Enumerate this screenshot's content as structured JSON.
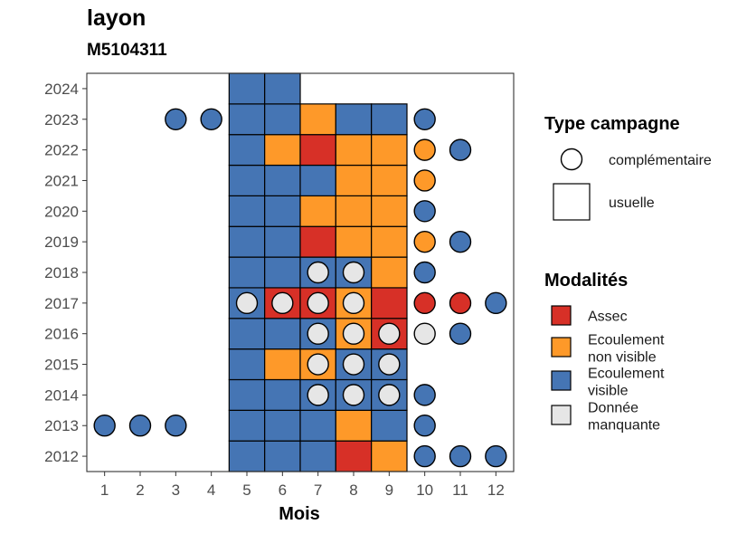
{
  "chart_data": {
    "type": "heatmap",
    "title": "layon",
    "subtitle": "M5104311",
    "xlabel": "Mois",
    "ylabel": "",
    "x_ticks": [
      "1",
      "2",
      "3",
      "4",
      "5",
      "6",
      "7",
      "8",
      "9",
      "10",
      "11",
      "12"
    ],
    "y_ticks": [
      "2012",
      "2013",
      "2014",
      "2015",
      "2016",
      "2017",
      "2018",
      "2019",
      "2020",
      "2021",
      "2022",
      "2023",
      "2024"
    ],
    "xlim": [
      0.5,
      12.5
    ],
    "ylim": [
      2011.5,
      2024.5
    ],
    "grid": false,
    "legend_shape": {
      "title": "Type campagne",
      "items": [
        {
          "key": "complementaire",
          "label": "complémentaire",
          "shape": "circle"
        },
        {
          "key": "usuelle",
          "label": "usuelle",
          "shape": "square"
        }
      ]
    },
    "legend_color": {
      "title": "Modalités",
      "items": [
        {
          "key": "A",
          "label_lines": [
            "Assec"
          ],
          "color": "#d73027"
        },
        {
          "key": "N",
          "label_lines": [
            "Ecoulement",
            "non visible"
          ],
          "color": "#fe9929"
        },
        {
          "key": "V",
          "label_lines": [
            "Ecoulement",
            "visible"
          ],
          "color": "#4575b4"
        },
        {
          "key": "M",
          "label_lines": [
            "Donnée",
            "manquante"
          ],
          "color": "#e6e6e6"
        }
      ]
    },
    "usuelle": [
      {
        "year": 2012,
        "months": [
          5,
          6,
          7,
          8,
          9
        ],
        "values": [
          "V",
          "V",
          "V",
          "A",
          "N"
        ]
      },
      {
        "year": 2013,
        "months": [
          5,
          6,
          7,
          8,
          9
        ],
        "values": [
          "V",
          "V",
          "V",
          "N",
          "V"
        ]
      },
      {
        "year": 2014,
        "months": [
          5,
          6,
          7,
          8,
          9
        ],
        "values": [
          "V",
          "V",
          "V",
          "V",
          "V"
        ]
      },
      {
        "year": 2015,
        "months": [
          5,
          6,
          7,
          8,
          9
        ],
        "values": [
          "V",
          "N",
          "N",
          "V",
          "V"
        ]
      },
      {
        "year": 2016,
        "months": [
          5,
          6,
          7,
          8,
          9
        ],
        "values": [
          "V",
          "V",
          "V",
          "N",
          "A"
        ]
      },
      {
        "year": 2017,
        "months": [
          5,
          6,
          7,
          8,
          9
        ],
        "values": [
          "V",
          "A",
          "A",
          "N",
          "A"
        ]
      },
      {
        "year": 2018,
        "months": [
          5,
          6,
          7,
          8,
          9
        ],
        "values": [
          "V",
          "V",
          "V",
          "V",
          "N"
        ]
      },
      {
        "year": 2019,
        "months": [
          5,
          6,
          7,
          8,
          9
        ],
        "values": [
          "V",
          "V",
          "A",
          "N",
          "N"
        ]
      },
      {
        "year": 2020,
        "months": [
          5,
          6,
          7,
          8,
          9
        ],
        "values": [
          "V",
          "V",
          "N",
          "N",
          "N"
        ]
      },
      {
        "year": 2021,
        "months": [
          5,
          6,
          7,
          8,
          9
        ],
        "values": [
          "V",
          "V",
          "V",
          "N",
          "N"
        ]
      },
      {
        "year": 2022,
        "months": [
          5,
          6,
          7,
          8,
          9
        ],
        "values": [
          "V",
          "N",
          "A",
          "N",
          "N"
        ]
      },
      {
        "year": 2023,
        "months": [
          5,
          6,
          7,
          8,
          9
        ],
        "values": [
          "V",
          "V",
          "N",
          "V",
          "V"
        ]
      },
      {
        "year": 2024,
        "months": [
          5,
          6
        ],
        "values": [
          "V",
          "V"
        ]
      }
    ],
    "complementaire": [
      {
        "year": 2012,
        "months": [
          10,
          11,
          12
        ],
        "values": [
          "V",
          "V",
          "V"
        ]
      },
      {
        "year": 2013,
        "months": [
          1,
          2,
          3,
          10
        ],
        "values": [
          "V",
          "V",
          "V",
          "V"
        ]
      },
      {
        "year": 2014,
        "months": [
          7,
          8,
          9,
          10
        ],
        "values": [
          "M",
          "M",
          "M",
          "V"
        ]
      },
      {
        "year": 2015,
        "months": [
          7,
          8,
          9
        ],
        "values": [
          "M",
          "M",
          "M"
        ]
      },
      {
        "year": 2016,
        "months": [
          7,
          8,
          9,
          10,
          11
        ],
        "values": [
          "M",
          "M",
          "M",
          "M",
          "V"
        ]
      },
      {
        "year": 2017,
        "months": [
          5,
          6,
          7,
          8,
          10,
          11,
          12
        ],
        "values": [
          "M",
          "M",
          "M",
          "M",
          "A",
          "A",
          "V"
        ]
      },
      {
        "year": 2018,
        "months": [
          7,
          8,
          10
        ],
        "values": [
          "M",
          "M",
          "V"
        ]
      },
      {
        "year": 2019,
        "months": [
          10,
          11
        ],
        "values": [
          "N",
          "V"
        ]
      },
      {
        "year": 2020,
        "months": [
          10
        ],
        "values": [
          "V"
        ]
      },
      {
        "year": 2021,
        "months": [
          10
        ],
        "values": [
          "N"
        ]
      },
      {
        "year": 2022,
        "months": [
          10,
          11
        ],
        "values": [
          "N",
          "V"
        ]
      },
      {
        "year": 2023,
        "months": [
          3,
          4,
          10
        ],
        "values": [
          "V",
          "V",
          "V"
        ]
      }
    ]
  }
}
